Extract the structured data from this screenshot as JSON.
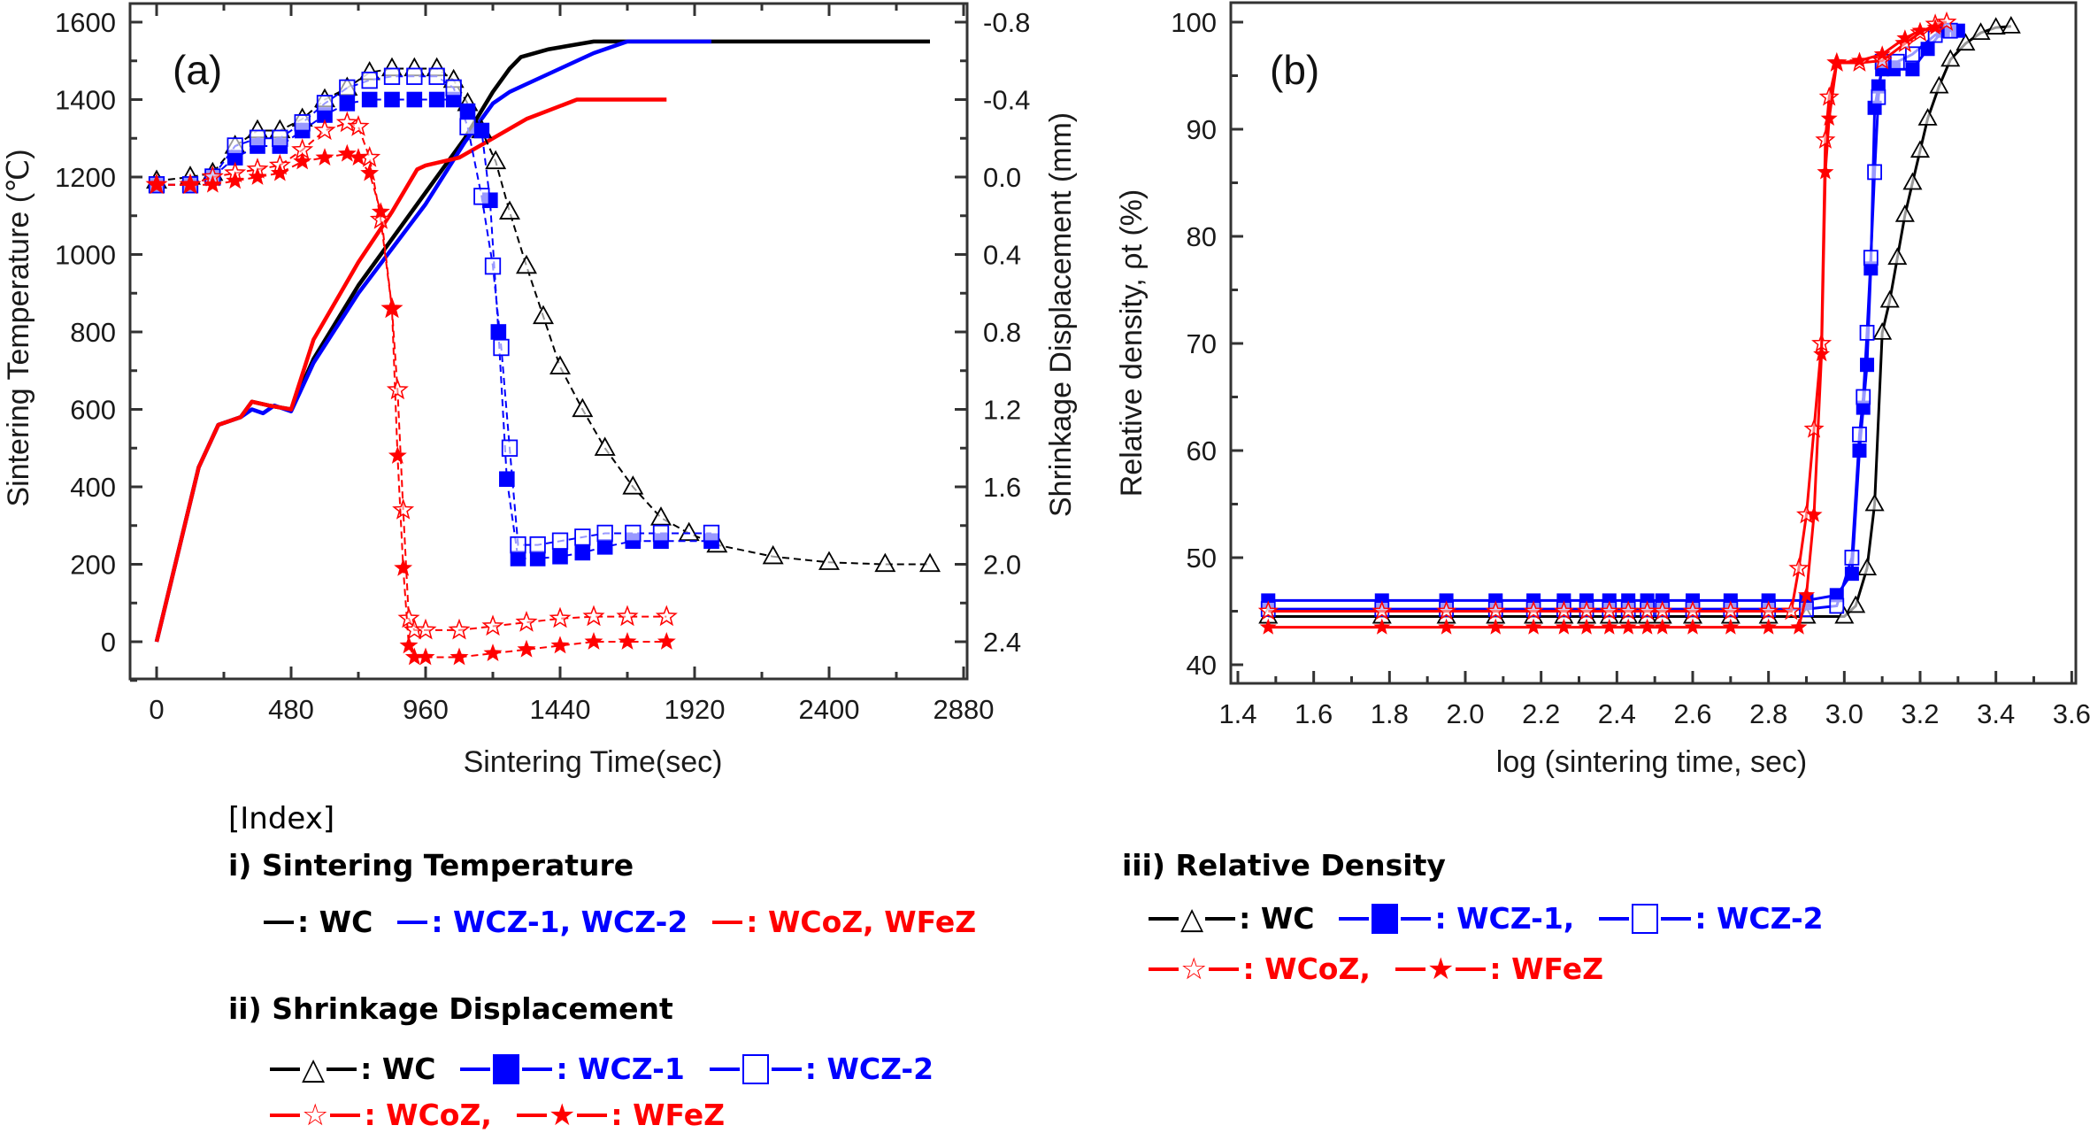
{
  "chart_data": [
    {
      "panel": "(a)",
      "type": "line",
      "title": "",
      "xlabel": "Sintering Time(sec)",
      "ylabel": "Sintering Temperature (℃)",
      "y2label": "Shrinkage Displacement (mm)",
      "xlim": [
        -120,
        2980
      ],
      "ylim": [
        -160,
        1640
      ],
      "y2lim": [
        2.72,
        -0.88
      ],
      "xticks": [
        "0",
        "480",
        "960",
        "1440",
        "1920",
        "2400",
        "2880"
      ],
      "xtick_values": [
        0,
        480,
        960,
        1440,
        1920,
        2400,
        2880
      ],
      "yticks": [
        "0",
        "200",
        "400",
        "600",
        "800",
        "1000",
        "1200",
        "1400",
        "1600"
      ],
      "ytick_values": [
        0,
        200,
        400,
        600,
        800,
        1000,
        1200,
        1400,
        1600
      ],
      "y2ticks": [
        "-0.8",
        "-0.4",
        "0.0",
        "0.4",
        "0.8",
        "1.2",
        "1.6",
        "2.0",
        "2.4"
      ],
      "y2tick_values": [
        -0.8,
        -0.4,
        0.0,
        0.4,
        0.8,
        1.2,
        1.6,
        2.0,
        2.4
      ],
      "grid": false,
      "temperature_series": [
        {
          "name": "WC",
          "color": "#000000",
          "x": [
            0,
            150,
            220,
            300,
            340,
            400,
            480,
            560,
            720,
            960,
            1100,
            1200,
            1260,
            1300,
            1400,
            1560,
            1680,
            2760
          ],
          "y": [
            0,
            450,
            560,
            580,
            620,
            610,
            600,
            730,
            920,
            1160,
            1300,
            1420,
            1480,
            1510,
            1530,
            1550,
            1550,
            1550
          ]
        },
        {
          "name": "WCZ-1, WCZ-2",
          "color": "#0000ff",
          "x": [
            0,
            150,
            220,
            300,
            340,
            380,
            420,
            480,
            560,
            720,
            960,
            1100,
            1200,
            1260,
            1320,
            1440,
            1560,
            1680,
            1980
          ],
          "y": [
            0,
            450,
            560,
            580,
            600,
            590,
            610,
            595,
            720,
            900,
            1130,
            1290,
            1390,
            1420,
            1440,
            1480,
            1520,
            1550,
            1550
          ]
        },
        {
          "name": "WCoZ, WFeZ",
          "color": "#ff0000",
          "x": [
            0,
            150,
            220,
            300,
            340,
            400,
            480,
            560,
            720,
            840,
            930,
            960,
            1080,
            1200,
            1320,
            1500,
            1820
          ],
          "y": [
            0,
            450,
            560,
            580,
            620,
            610,
            600,
            780,
            980,
            1110,
            1220,
            1230,
            1250,
            1300,
            1350,
            1400,
            1400
          ]
        }
      ],
      "displacement_series": [
        {
          "name": "WC",
          "marker": "open-triangle",
          "color": "#000000",
          "x": [
            0,
            120,
            200,
            280,
            360,
            440,
            520,
            600,
            680,
            760,
            840,
            920,
            1000,
            1060,
            1110,
            1160,
            1210,
            1260,
            1320,
            1380,
            1440,
            1520,
            1600,
            1700,
            1800,
            1900,
            2000,
            2200,
            2400,
            2600,
            2760
          ],
          "y": [
            0.02,
            0.0,
            -0.02,
            -0.16,
            -0.24,
            -0.24,
            -0.3,
            -0.4,
            -0.46,
            -0.54,
            -0.56,
            -0.56,
            -0.56,
            -0.5,
            -0.38,
            -0.24,
            -0.08,
            0.18,
            0.46,
            0.72,
            0.98,
            1.2,
            1.4,
            1.6,
            1.76,
            1.84,
            1.9,
            1.96,
            1.99,
            2.0,
            2.0
          ]
        },
        {
          "name": "WCZ-1",
          "marker": "filled-square",
          "color": "#0000ff",
          "x": [
            0,
            120,
            200,
            280,
            360,
            440,
            520,
            600,
            680,
            760,
            840,
            920,
            1000,
            1060,
            1110,
            1160,
            1190,
            1220,
            1250,
            1290,
            1360,
            1440,
            1520,
            1600,
            1700,
            1800,
            1980
          ],
          "y": [
            0.04,
            0.04,
            0.0,
            -0.1,
            -0.16,
            -0.16,
            -0.24,
            -0.32,
            -0.38,
            -0.4,
            -0.4,
            -0.4,
            -0.4,
            -0.4,
            -0.34,
            -0.24,
            0.12,
            0.8,
            1.56,
            1.97,
            1.97,
            1.96,
            1.94,
            1.91,
            1.88,
            1.88,
            1.88
          ]
        },
        {
          "name": "WCZ-2",
          "marker": "open-square",
          "color": "#0000ff",
          "x": [
            0,
            120,
            200,
            280,
            360,
            440,
            520,
            600,
            680,
            760,
            840,
            920,
            1000,
            1060,
            1110,
            1160,
            1200,
            1230,
            1260,
            1290,
            1360,
            1440,
            1520,
            1600,
            1700,
            1800,
            1980
          ],
          "y": [
            0.04,
            0.04,
            0.0,
            -0.16,
            -0.2,
            -0.2,
            -0.28,
            -0.38,
            -0.46,
            -0.5,
            -0.52,
            -0.52,
            -0.52,
            -0.46,
            -0.26,
            0.1,
            0.46,
            0.88,
            1.4,
            1.9,
            1.9,
            1.88,
            1.86,
            1.84,
            1.84,
            1.84,
            1.84
          ]
        },
        {
          "name": "WCoZ",
          "marker": "open-star",
          "color": "#ff0000",
          "x": [
            0,
            120,
            200,
            280,
            360,
            440,
            520,
            600,
            680,
            720,
            760,
            800,
            840,
            860,
            880,
            900,
            920,
            960,
            1080,
            1200,
            1320,
            1440,
            1560,
            1680,
            1820
          ],
          "y": [
            0.04,
            0.04,
            0.0,
            -0.02,
            -0.04,
            -0.06,
            -0.14,
            -0.24,
            -0.28,
            -0.26,
            -0.1,
            0.22,
            0.68,
            1.1,
            1.72,
            2.28,
            2.34,
            2.34,
            2.34,
            2.32,
            2.3,
            2.28,
            2.27,
            2.27,
            2.27
          ]
        },
        {
          "name": "WFeZ",
          "marker": "filled-star",
          "color": "#ff0000",
          "x": [
            0,
            120,
            200,
            280,
            360,
            440,
            520,
            600,
            680,
            720,
            760,
            800,
            840,
            860,
            880,
            900,
            920,
            960,
            1080,
            1200,
            1320,
            1440,
            1560,
            1680,
            1820
          ],
          "y": [
            0.04,
            0.04,
            0.04,
            0.02,
            0.0,
            -0.02,
            -0.08,
            -0.1,
            -0.12,
            -0.1,
            -0.02,
            0.18,
            0.68,
            1.44,
            2.02,
            2.42,
            2.48,
            2.48,
            2.48,
            2.46,
            2.44,
            2.42,
            2.4,
            2.4,
            2.4
          ]
        }
      ]
    },
    {
      "panel": "(b)",
      "type": "line",
      "title": "",
      "xlabel": "log (sintering time, sec)",
      "ylabel": "Relative density, ρt (%)",
      "xlim": [
        1.4,
        3.6
      ],
      "ylim": [
        38.8,
        102.8
      ],
      "xticks": [
        "1.4",
        "1.6",
        "1.8",
        "2.0",
        "2.2",
        "2.4",
        "2.6",
        "2.8",
        "3.0",
        "3.2",
        "3.4",
        "3.6"
      ],
      "xtick_values": [
        1.4,
        1.6,
        1.8,
        2.0,
        2.2,
        2.4,
        2.6,
        2.8,
        3.0,
        3.2,
        3.4,
        3.6
      ],
      "yticks": [
        "40",
        "50",
        "60",
        "70",
        "80",
        "90",
        "100"
      ],
      "ytick_values": [
        40,
        50,
        60,
        70,
        80,
        90,
        100
      ],
      "grid": false,
      "series": [
        {
          "name": "WC",
          "marker": "open-triangle",
          "color": "#000000",
          "x": [
            1.48,
            1.78,
            1.95,
            2.08,
            2.18,
            2.26,
            2.32,
            2.38,
            2.43,
            2.48,
            2.52,
            2.6,
            2.7,
            2.8,
            2.9,
            3.0,
            3.03,
            3.06,
            3.08,
            3.1,
            3.12,
            3.14,
            3.16,
            3.18,
            3.2,
            3.22,
            3.25,
            3.28,
            3.32,
            3.36,
            3.4,
            3.44
          ],
          "y": [
            44.5,
            44.5,
            44.5,
            44.5,
            44.5,
            44.5,
            44.5,
            44.5,
            44.5,
            44.5,
            44.5,
            44.5,
            44.5,
            44.5,
            44.5,
            44.5,
            45.5,
            49,
            55,
            71,
            74,
            78,
            82,
            85,
            88,
            91,
            94,
            96.5,
            98,
            99,
            99.5,
            99.6
          ]
        },
        {
          "name": "WCZ-1",
          "marker": "filled-square",
          "color": "#0000ff",
          "x": [
            1.48,
            1.78,
            1.95,
            2.08,
            2.18,
            2.26,
            2.32,
            2.38,
            2.43,
            2.48,
            2.52,
            2.6,
            2.7,
            2.8,
            2.9,
            2.98,
            3.02,
            3.04,
            3.05,
            3.06,
            3.07,
            3.08,
            3.09,
            3.1,
            3.13,
            3.18,
            3.22,
            3.26,
            3.3
          ],
          "y": [
            46,
            46,
            46,
            46,
            46,
            46,
            46,
            46,
            46,
            46,
            46,
            46,
            46,
            46,
            46,
            46.5,
            48.5,
            60,
            64,
            68,
            77,
            92,
            94,
            95.6,
            95.6,
            95.6,
            97.5,
            99.2,
            99.2
          ]
        },
        {
          "name": "WCZ-2",
          "marker": "open-square",
          "color": "#0000ff",
          "x": [
            1.48,
            1.78,
            1.95,
            2.08,
            2.18,
            2.26,
            2.32,
            2.38,
            2.43,
            2.48,
            2.52,
            2.6,
            2.7,
            2.8,
            2.9,
            2.98,
            3.02,
            3.04,
            3.05,
            3.06,
            3.07,
            3.08,
            3.09,
            3.1,
            3.14,
            3.18,
            3.24,
            3.28
          ],
          "y": [
            45.2,
            45.2,
            45.2,
            45.2,
            45.2,
            45.2,
            45.2,
            45.2,
            45.2,
            45.2,
            45.2,
            45.2,
            45.2,
            45.2,
            45.2,
            45.5,
            50,
            61.5,
            65,
            71,
            78,
            86,
            93,
            96.3,
            96.3,
            97,
            98.8,
            99.2
          ]
        },
        {
          "name": "WCoZ",
          "marker": "open-star",
          "color": "#ff0000",
          "x": [
            1.48,
            1.78,
            1.95,
            2.08,
            2.18,
            2.26,
            2.32,
            2.38,
            2.43,
            2.48,
            2.52,
            2.6,
            2.7,
            2.8,
            2.86,
            2.88,
            2.9,
            2.92,
            2.94,
            2.95,
            2.96,
            2.98,
            3.04,
            3.1,
            3.16,
            3.2,
            3.24,
            3.27
          ],
          "y": [
            45,
            45,
            45,
            45,
            45,
            45,
            45,
            45,
            45,
            45,
            45,
            45,
            45,
            45,
            45,
            49,
            54,
            62,
            70,
            89,
            93,
            96.2,
            96.2,
            96.4,
            98,
            99,
            99.8,
            100
          ]
        },
        {
          "name": "WFeZ",
          "marker": "filled-star",
          "color": "#ff0000",
          "x": [
            1.48,
            1.78,
            1.95,
            2.08,
            2.18,
            2.26,
            2.32,
            2.38,
            2.43,
            2.48,
            2.52,
            2.6,
            2.7,
            2.8,
            2.88,
            2.9,
            2.92,
            2.94,
            2.95,
            2.96,
            2.98,
            3.04,
            3.1,
            3.16,
            3.2,
            3.24
          ],
          "y": [
            43.5,
            43.5,
            43.5,
            43.5,
            43.5,
            43.5,
            43.5,
            43.5,
            43.5,
            43.5,
            43.5,
            43.5,
            43.5,
            43.5,
            43.5,
            46.5,
            54,
            69,
            86,
            91,
            96.2,
            96.4,
            97,
            98.5,
            99.2,
            99.5
          ]
        }
      ]
    }
  ],
  "index": {
    "title": "[Index]",
    "sections": [
      {
        "heading": "i) Sintering Temperature",
        "rows": [
          [
            {
              "symbol": "line",
              "color": "black",
              "label": ": WC"
            },
            {
              "symbol": "line",
              "color": "blue",
              "label": ": WCZ-1, WCZ-2"
            },
            {
              "symbol": "line",
              "color": "red",
              "label": ": WCoZ, WFeZ"
            }
          ]
        ]
      },
      {
        "heading": "ii) Shrinkage Displacement",
        "rows": [
          [
            {
              "symbol": "open-triangle",
              "color": "black",
              "label": ": WC"
            },
            {
              "symbol": "filled-square",
              "color": "blue",
              "label": ": WCZ-1"
            },
            {
              "symbol": "open-square",
              "color": "blue",
              "label": ": WCZ-2"
            }
          ],
          [
            {
              "symbol": "open-star",
              "color": "red",
              "label": ": WCoZ,"
            },
            {
              "symbol": "filled-star",
              "color": "red",
              "label": ": WFeZ"
            }
          ]
        ]
      },
      {
        "heading": "iii) Relative Density",
        "rows": [
          [
            {
              "symbol": "open-triangle",
              "color": "black",
              "label": ": WC"
            },
            {
              "symbol": "filled-square",
              "color": "blue",
              "label": ": WCZ-1,"
            },
            {
              "symbol": "open-square",
              "color": "blue",
              "label": ": WCZ-2"
            }
          ],
          [
            {
              "symbol": "open-star",
              "color": "red",
              "label": ": WCoZ,"
            },
            {
              "symbol": "filled-star",
              "color": "red",
              "label": ": WFeZ"
            }
          ]
        ]
      }
    ]
  },
  "colors": {
    "black": "#000000",
    "blue": "#0000ff",
    "red": "#ff0000"
  }
}
